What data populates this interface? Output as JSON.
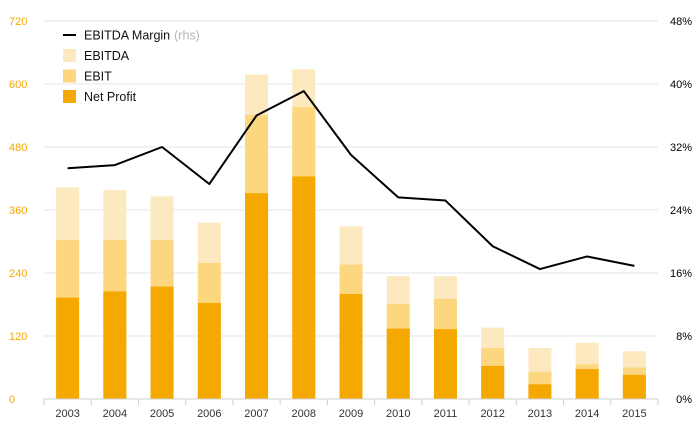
{
  "chart_data": {
    "type": "bar",
    "stacked": true,
    "categories": [
      "2003",
      "2004",
      "2005",
      "2006",
      "2007",
      "2008",
      "2009",
      "2010",
      "2011",
      "2012",
      "2013",
      "2014",
      "2015"
    ],
    "series": [
      {
        "name": "Net Profit",
        "color": "#f5a800",
        "values": [
          193,
          205,
          214,
          183,
          392,
          424,
          200,
          134,
          133,
          63,
          28,
          57,
          46
        ]
      },
      {
        "name": "EBIT",
        "color": "#fcd77f",
        "values": [
          303,
          303,
          303,
          259,
          541,
          556,
          256,
          181,
          191,
          97,
          52,
          66,
          60
        ]
      },
      {
        "name": "EBITDA",
        "color": "#fde9c0",
        "values": [
          403,
          398,
          386,
          336,
          618,
          628,
          329,
          234,
          234,
          136,
          97,
          107,
          91
        ]
      }
    ],
    "line_series": {
      "name": "EBITDA Margin",
      "name_suffix": "(rhs)",
      "color": "#000000",
      "axis": "right",
      "values": [
        29.3,
        29.7,
        32.0,
        27.3,
        36.0,
        39.1,
        31.0,
        25.6,
        25.2,
        19.4,
        16.5,
        18.1,
        16.9
      ]
    },
    "left_axis": {
      "ticks": [
        "0",
        "120",
        "240",
        "360",
        "480",
        "600",
        "720"
      ],
      "ylim": [
        0,
        720
      ],
      "color": "#f5a800"
    },
    "right_axis": {
      "ticks": [
        "0%",
        "8%",
        "16%",
        "24%",
        "32%",
        "40%",
        "48%"
      ],
      "ylim": [
        0,
        48
      ],
      "color": "#000000"
    },
    "legend": {
      "position": "top-left",
      "entries": [
        {
          "label": "EBITDA Margin",
          "suffix": "(rhs)",
          "kind": "line",
          "color": "#000000"
        },
        {
          "label": "EBITDA",
          "kind": "box",
          "color": "#fde9c0"
        },
        {
          "label": "EBIT",
          "kind": "box",
          "color": "#fcd77f"
        },
        {
          "label": "Net Profit",
          "kind": "box",
          "color": "#f5a800"
        }
      ]
    },
    "grid": true,
    "title": "",
    "xlabel": "",
    "ylabel": ""
  }
}
